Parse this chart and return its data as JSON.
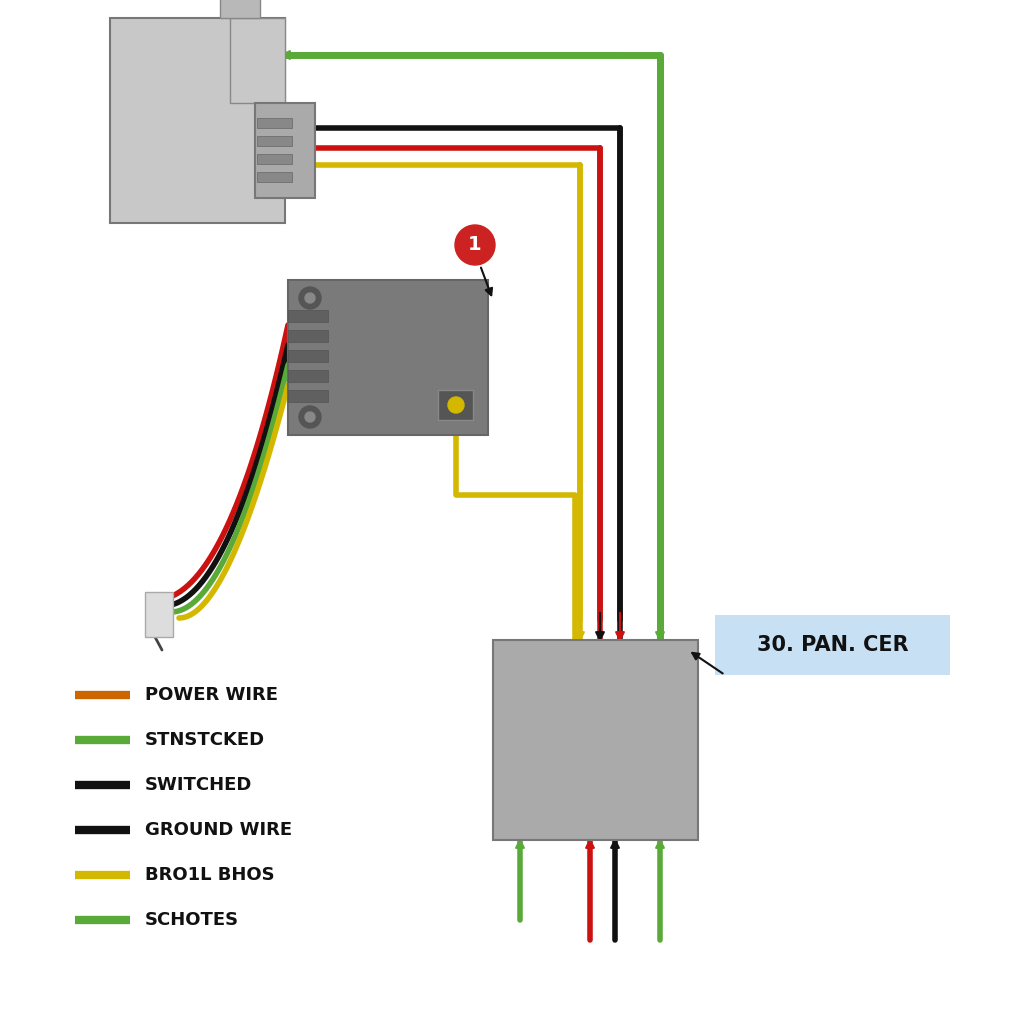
{
  "bg_color": "#ffffff",
  "wire_colors": {
    "green": "#5aaa3a",
    "black": "#111111",
    "red": "#cc1111",
    "yellow": "#d4b800",
    "orange": "#cc6600"
  },
  "legend_items": [
    {
      "color": "#cc6600",
      "label": "POWER WIRE"
    },
    {
      "color": "#5aaa3a",
      "label": "STNSTCKED"
    },
    {
      "color": "#111111",
      "label": "SWITCHED"
    },
    {
      "color": "#111111",
      "label": "GROUND WIRE"
    },
    {
      "color": "#d4b800",
      "label": "BRO1L BHOS"
    },
    {
      "color": "#5aaa3a",
      "label": "SCHOTES"
    }
  ],
  "connector_label": "30. PAN. CER",
  "label_1_text": "1",
  "label_bg": "#c8e0f4"
}
